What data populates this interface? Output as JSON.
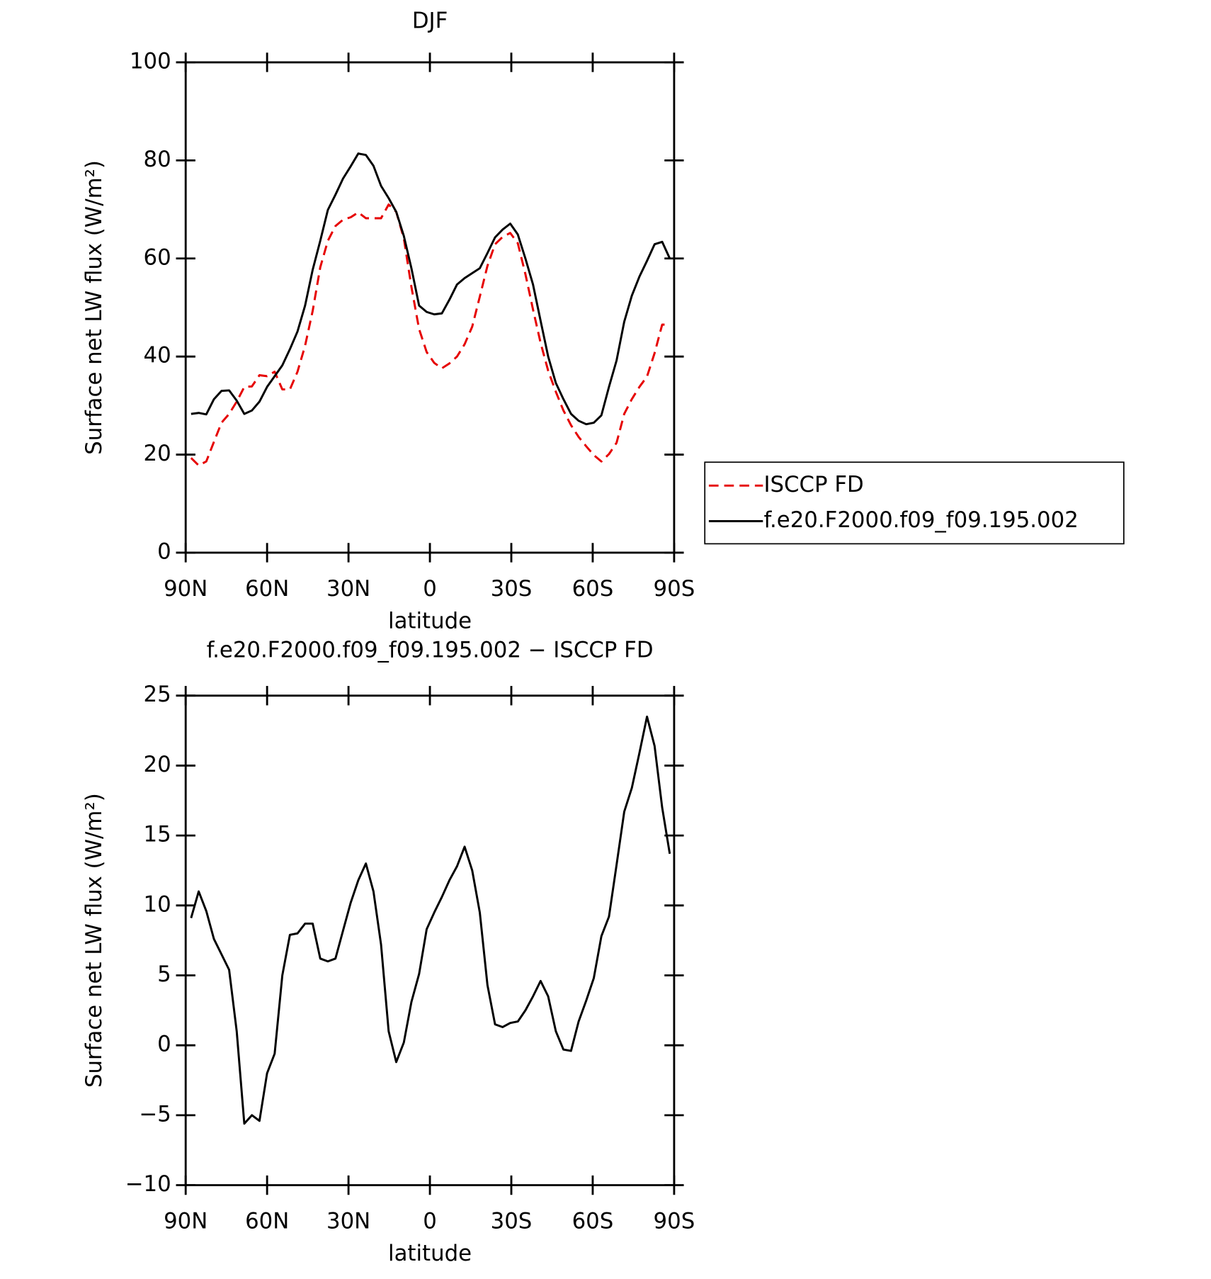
{
  "chart_data": [
    {
      "type": "line",
      "title": "DJF",
      "xlabel": "latitude",
      "ylabel": "Surface net LW flux (W/m²)",
      "x": [
        88,
        85.2,
        82.4,
        79.6,
        76.8,
        74,
        71.2,
        68.4,
        65.6,
        62.8,
        60,
        57.2,
        54.4,
        51.6,
        48.8,
        46,
        43.2,
        40.4,
        37.6,
        34.8,
        32,
        29.2,
        26.4,
        23.6,
        20.8,
        18,
        15.2,
        12.4,
        9.6,
        6.8,
        4,
        1.2,
        -1.6,
        -4.4,
        -7.2,
        -10,
        -12.8,
        -15.6,
        -18.4,
        -21.2,
        -24,
        -26.8,
        -29.6,
        -32.4,
        -35.2,
        -38,
        -40.8,
        -43.6,
        -46.4,
        -49.2,
        -52,
        -54.8,
        -57.6,
        -60.4,
        -63.2,
        -66,
        -68.8,
        -71.6,
        -74.4,
        -77.2,
        -80,
        -82.8,
        -85.6,
        -88.4
      ],
      "xlim": [
        90,
        -90
      ],
      "xticks": [
        {
          "value": 90,
          "label": "90N"
        },
        {
          "value": 60,
          "label": "60N"
        },
        {
          "value": 30,
          "label": "30N"
        },
        0,
        {
          "value": -30,
          "label": "30S"
        },
        {
          "value": -60,
          "label": "60S"
        },
        {
          "value": -90,
          "label": "90S"
        }
      ],
      "ylim": [
        0,
        100
      ],
      "yticks": [
        0,
        20,
        40,
        60,
        80,
        100
      ],
      "legend": "right",
      "series": [
        {
          "name": "ISCCP FD",
          "color": "#e60000",
          "line_style": "dashed",
          "values": [
            19.3,
            17.8,
            18.6,
            22.6,
            26.5,
            28.3,
            30.8,
            33.8,
            33.9,
            36.2,
            36,
            36.9,
            33.3,
            33.3,
            36.9,
            42.2,
            49.3,
            58.2,
            63.6,
            66.6,
            67.9,
            68.4,
            69.4,
            68.2,
            68.2,
            68.2,
            71,
            69.5,
            64.1,
            54.2,
            45.6,
            40.9,
            38.7,
            37.6,
            38.6,
            40,
            42.5,
            46.1,
            52.2,
            58.5,
            62.9,
            64.4,
            65.2,
            63.1,
            56.8,
            49.6,
            42.8,
            37.1,
            32.8,
            29,
            26,
            23.6,
            21.7,
            19.9,
            18.6,
            20.1,
            22.4,
            28.3,
            31.3,
            33.8,
            35.9,
            40.7,
            46.5,
            46.5
          ]
        },
        {
          "name": "f.e20.F2000.f09_f09.195.002",
          "color": "#000000",
          "line_style": "solid",
          "values": [
            28.3,
            28.5,
            28.2,
            31.3,
            33,
            33.1,
            31,
            28.3,
            29,
            30.8,
            33.8,
            36,
            38.2,
            41.5,
            45.1,
            50.4,
            57.7,
            63.6,
            69.9,
            73,
            76.3,
            78.8,
            81.4,
            81.1,
            78.9,
            74.8,
            72.3,
            69.5,
            64.6,
            58,
            50.4,
            49.1,
            48.6,
            48.8,
            51.6,
            54.7,
            56,
            57,
            58,
            61.1,
            64.3,
            65.9,
            67.1,
            64.9,
            60,
            54.7,
            47.3,
            40,
            34.6,
            31.3,
            28.3,
            26.9,
            26.2,
            26.5,
            28,
            33.8,
            39.2,
            47.1,
            52.4,
            56.3,
            59.5,
            62.9,
            63.4,
            60
          ]
        }
      ]
    },
    {
      "type": "line",
      "title": "f.e20.F2000.f09_f09.195.002 − ISCCP FD",
      "xlabel": "latitude",
      "ylabel": "Surface net LW flux (W/m²)",
      "x": [
        88,
        85.2,
        82.4,
        79.6,
        76.8,
        74,
        71.2,
        68.4,
        65.6,
        62.8,
        60,
        57.2,
        54.4,
        51.6,
        48.8,
        46,
        43.2,
        40.4,
        37.6,
        34.8,
        32,
        29.2,
        26.4,
        23.6,
        20.8,
        18,
        15.2,
        12.4,
        9.6,
        6.8,
        4,
        1.2,
        -1.6,
        -4.4,
        -7.2,
        -10,
        -12.8,
        -15.6,
        -18.4,
        -21.2,
        -24,
        -26.8,
        -29.6,
        -32.4,
        -35.2,
        -38,
        -40.8,
        -43.6,
        -46.4,
        -49.2,
        -52,
        -54.8,
        -57.6,
        -60.4,
        -63.2,
        -66,
        -68.8,
        -71.6,
        -74.4,
        -77.2,
        -80,
        -82.8,
        -85.6,
        -88.4
      ],
      "xlim": [
        90,
        -90
      ],
      "xticks": [
        {
          "value": 90,
          "label": "90N"
        },
        {
          "value": 60,
          "label": "60N"
        },
        {
          "value": 30,
          "label": "30N"
        },
        0,
        {
          "value": -30,
          "label": "30S"
        },
        {
          "value": -60,
          "label": "60S"
        },
        {
          "value": -90,
          "label": "90S"
        }
      ],
      "ylim": [
        -10,
        25
      ],
      "yticks": [
        {
          "value": -10,
          "label": "−10"
        },
        {
          "value": -5,
          "label": "−5"
        },
        0,
        5,
        10,
        15,
        20,
        25
      ],
      "series": [
        {
          "color": "#000000",
          "line_style": "solid",
          "values": [
            9.1,
            11,
            9.6,
            7.6,
            6.5,
            5.4,
            1,
            -5.6,
            -5,
            -5.4,
            -2,
            -0.6,
            5,
            7.9,
            8,
            8.7,
            8.7,
            6.2,
            6,
            6.2,
            8.2,
            10.2,
            11.8,
            13,
            11,
            7.2,
            1,
            -1.2,
            0.2,
            3.1,
            5.1,
            8.3,
            9.5,
            10.6,
            11.8,
            12.8,
            14.2,
            12.5,
            9.5,
            4.3,
            1.5,
            1.3,
            1.6,
            1.7,
            2.5,
            3.5,
            4.6,
            3.5,
            1,
            -0.3,
            -0.4,
            1.7,
            3.2,
            4.8,
            7.8,
            9.2,
            12.9,
            16.7,
            18.4,
            20.9,
            23.5,
            21.4,
            17,
            13.7
          ]
        }
      ]
    }
  ]
}
